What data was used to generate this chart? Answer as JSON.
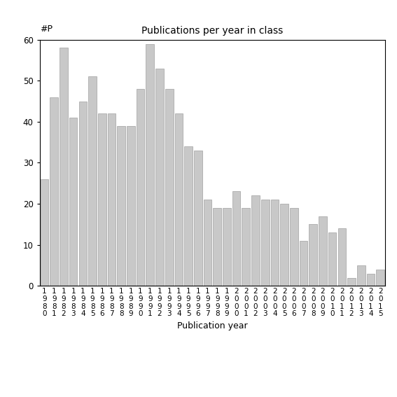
{
  "title": "Publications per year in class",
  "xlabel": "Publication year",
  "ylabel": "#P",
  "bar_color": "#c8c8c8",
  "bar_edge_color": "#a0a0a0",
  "background_color": "#ffffff",
  "ylim": [
    0,
    60
  ],
  "yticks": [
    0,
    10,
    20,
    30,
    40,
    50,
    60
  ],
  "years": [
    "1980",
    "1981",
    "1982",
    "1983",
    "1984",
    "1985",
    "1986",
    "1987",
    "1988",
    "1989",
    "1990",
    "1991",
    "1992",
    "1993",
    "1994",
    "1995",
    "1996",
    "1997",
    "1998",
    "1999",
    "2000",
    "2001",
    "2002",
    "2003",
    "2004",
    "2005",
    "2006",
    "2007",
    "2008",
    "2009",
    "2010",
    "2011",
    "2012",
    "2013",
    "2014",
    "2015"
  ],
  "values": [
    26,
    46,
    58,
    41,
    45,
    51,
    42,
    42,
    39,
    39,
    48,
    59,
    53,
    48,
    42,
    34,
    33,
    21,
    19,
    19,
    23,
    19,
    22,
    21,
    21,
    20,
    19,
    11,
    15,
    17,
    13,
    14,
    2,
    5,
    3,
    4
  ],
  "figsize": [
    5.67,
    5.67
  ],
  "dpi": 100,
  "title_fontsize": 10,
  "label_fontsize": 9,
  "tick_fontsize": 7.5
}
